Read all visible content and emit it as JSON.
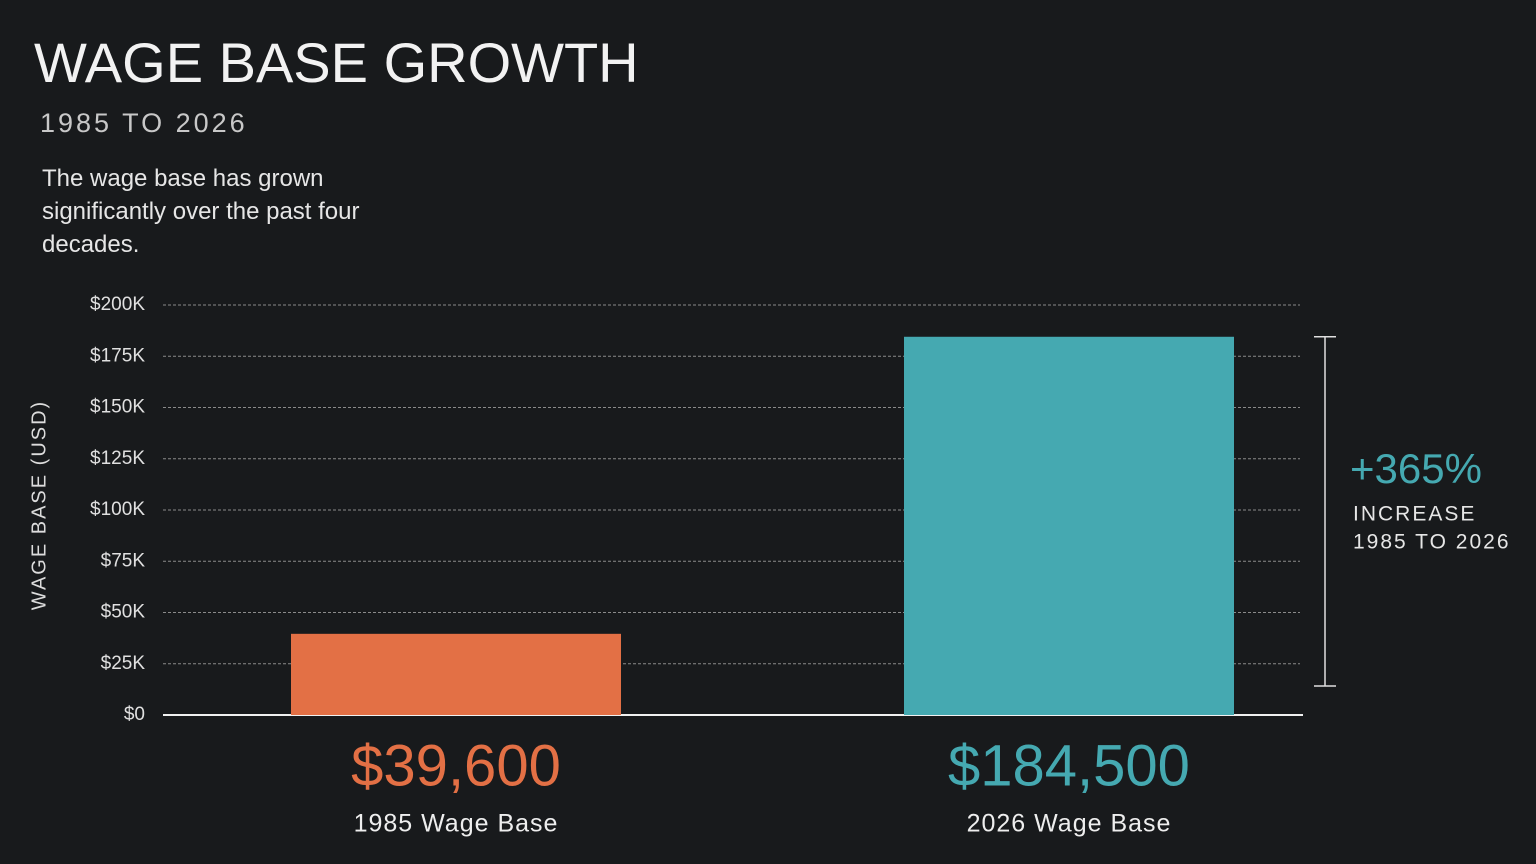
{
  "chart_data": {
    "type": "bar",
    "title": "WAGE BASE GROWTH",
    "subtitle": "1985 TO 2026",
    "description": "The wage base has grown significantly over the past four decades.",
    "y_label": "WAGE BASE (USD)",
    "categories": [
      "1985 Wage Base",
      "2026 Wage Base"
    ],
    "values": [
      39600,
      184500
    ],
    "value_labels": [
      "$39,600",
      "$184,500"
    ],
    "colors": [
      "#e37045",
      "#45a9b1"
    ],
    "ylim": [
      0,
      200000
    ],
    "yticks": [
      {
        "value": 0,
        "label": "$0"
      },
      {
        "value": 25000,
        "label": "$25K"
      },
      {
        "value": 50000,
        "label": "$50K"
      },
      {
        "value": 75000,
        "label": "$75K"
      },
      {
        "value": 100000,
        "label": "$100K"
      },
      {
        "value": 125000,
        "label": "$125K"
      },
      {
        "value": 150000,
        "label": "$150K"
      },
      {
        "value": 175000,
        "label": "$175K"
      },
      {
        "value": 200000,
        "label": "$200K"
      }
    ],
    "grid": true,
    "annotation": {
      "value": "+365%",
      "line1": "INCREASE",
      "line2": "1985 TO 2026"
    }
  }
}
